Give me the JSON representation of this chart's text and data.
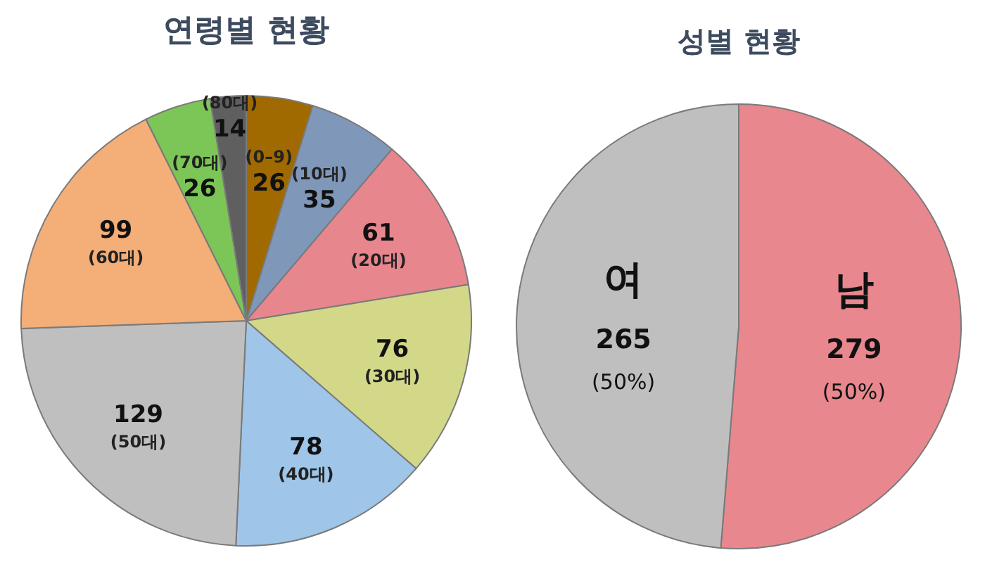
{
  "chart_data": [
    {
      "type": "pie",
      "title": "연령별 현황",
      "categories": [
        "(0–9)",
        "(10대)",
        "(20대)",
        "(30대)",
        "(40대)",
        "(50대)",
        "(60대)",
        "(70대)",
        "(80대)"
      ],
      "values": [
        26,
        35,
        61,
        76,
        78,
        129,
        99,
        26,
        14
      ],
      "colors": [
        "#a06a00",
        "#7f97b9",
        "#e8868e",
        "#d3d889",
        "#9fc5e8",
        "#bfbfbf",
        "#f4ae78",
        "#7cc557",
        "#5f5f5f"
      ],
      "data_labels": true
    },
    {
      "type": "pie",
      "title": "성별 현황",
      "categories": [
        "남",
        "여"
      ],
      "values": [
        279,
        265
      ],
      "colors": [
        "#e8888e",
        "#bfbfbf"
      ],
      "value_labels": [
        "279\n(50%)",
        "265\n(50%)"
      ]
    }
  ]
}
